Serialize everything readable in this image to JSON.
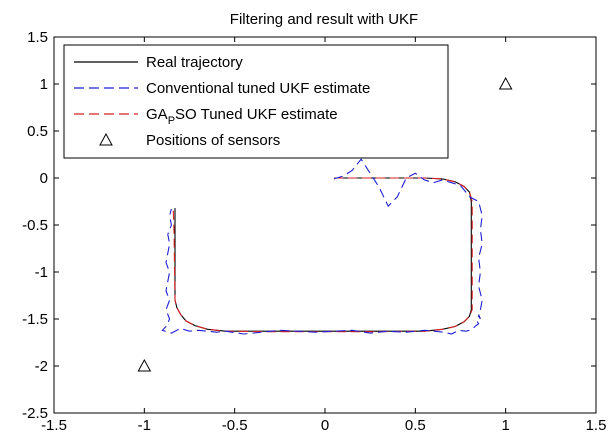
{
  "chart_data": {
    "type": "line",
    "title": "Filtering and  result with UKF",
    "xlabel": "",
    "ylabel": "",
    "xlim": [
      -1.5,
      1.5
    ],
    "ylim": [
      -2.5,
      1.5
    ],
    "xticks": [
      -1.5,
      -1,
      -0.5,
      0,
      0.5,
      1,
      1.5
    ],
    "yticks": [
      -2.5,
      -2,
      -1.5,
      -1,
      -0.5,
      0,
      0.5,
      1,
      1.5
    ],
    "xtick_labels": [
      "-1.5",
      "-1",
      "-0.5",
      "0",
      "0.5",
      "1",
      "1.5"
    ],
    "ytick_labels": [
      "-2.5",
      "-2",
      "-1.5",
      "-1",
      "-0.5",
      "0",
      "0.5",
      "1",
      "1.5"
    ],
    "grid": false,
    "legend": {
      "placement": "top-left",
      "entries": [
        {
          "label": "Real trajectory",
          "style": "solid",
          "color": "#000000",
          "marker": "line"
        },
        {
          "label": "Conventional tuned UKF estimate",
          "style": "dashed",
          "color": "#1f1fd6",
          "marker": "line"
        },
        {
          "label": "GA",
          "sub": "P",
          "rest": "SO Tuned UKF estimate",
          "style": "dashed",
          "color": "#d62020",
          "marker": "line"
        },
        {
          "label": "Positions of sensors",
          "style": "none",
          "color": "#000000",
          "marker": "triangle"
        }
      ]
    },
    "series": [
      {
        "name": "Real trajectory",
        "color": "#000000",
        "style": "solid",
        "x": [
          0.05,
          0.3,
          0.55,
          0.65,
          0.72,
          0.77,
          0.8,
          0.81,
          0.81,
          0.8,
          0.77,
          0.72,
          0.65,
          0.55,
          0.3,
          0.0,
          -0.3,
          -0.55,
          -0.65,
          -0.72,
          -0.77,
          -0.8,
          -0.82,
          -0.83,
          -0.83,
          -0.83
        ],
        "y": [
          0.0,
          0.0,
          0.0,
          -0.01,
          -0.04,
          -0.09,
          -0.15,
          -0.25,
          -1.4,
          -1.47,
          -1.53,
          -1.58,
          -1.61,
          -1.63,
          -1.63,
          -1.63,
          -1.63,
          -1.63,
          -1.61,
          -1.57,
          -1.52,
          -1.45,
          -1.38,
          -1.3,
          -0.6,
          -0.32
        ]
      },
      {
        "name": "GAPSO Tuned UKF estimate",
        "color": "#d62020",
        "style": "dashed",
        "x": [
          0.05,
          0.3,
          0.55,
          0.65,
          0.72,
          0.77,
          0.8,
          0.815,
          0.815,
          0.8,
          0.77,
          0.72,
          0.65,
          0.55,
          0.3,
          0.0,
          -0.3,
          -0.55,
          -0.65,
          -0.72,
          -0.77,
          -0.8,
          -0.82,
          -0.83,
          -0.835,
          -0.84
        ],
        "y": [
          0.0,
          0.0,
          0.0,
          -0.01,
          -0.04,
          -0.09,
          -0.15,
          -0.25,
          -1.4,
          -1.47,
          -1.53,
          -1.58,
          -1.61,
          -1.63,
          -1.635,
          -1.635,
          -1.635,
          -1.63,
          -1.61,
          -1.57,
          -1.52,
          -1.45,
          -1.38,
          -1.3,
          -0.6,
          -0.32
        ]
      },
      {
        "name": "Conventional tuned UKF estimate",
        "color": "#1f1fd6",
        "style": "dashed",
        "x": [
          0.05,
          0.1,
          0.15,
          0.2,
          0.25,
          0.3,
          0.35,
          0.4,
          0.45,
          0.5,
          0.55,
          0.6,
          0.65,
          0.7,
          0.75,
          0.78,
          0.8,
          0.85,
          0.87,
          0.86,
          0.87,
          0.85,
          0.86,
          0.85,
          0.87,
          0.86,
          0.85,
          0.86,
          0.85,
          0.84,
          0.85,
          0.83,
          0.82,
          0.8,
          0.78,
          0.74,
          0.7,
          0.66,
          0.6,
          0.55,
          0.45,
          0.35,
          0.25,
          0.15,
          0.05,
          -0.05,
          -0.15,
          -0.25,
          -0.35,
          -0.45,
          -0.55,
          -0.6,
          -0.65,
          -0.7,
          -0.75,
          -0.8,
          -0.85,
          -0.9,
          -0.88,
          -0.86,
          -0.88,
          -0.86,
          -0.88,
          -0.87,
          -0.86,
          -0.88,
          -0.87,
          -0.86,
          -0.87,
          -0.85,
          -0.86,
          -0.85
        ],
        "y": [
          -0.01,
          0.02,
          0.08,
          0.2,
          0.05,
          -0.1,
          -0.3,
          -0.2,
          0.0,
          0.05,
          -0.02,
          -0.05,
          -0.02,
          -0.05,
          -0.08,
          -0.15,
          -0.2,
          -0.25,
          -0.4,
          -0.55,
          -0.7,
          -0.85,
          -1.0,
          -1.15,
          -1.3,
          -1.4,
          -1.45,
          -1.5,
          -1.47,
          -1.52,
          -1.55,
          -1.58,
          -1.6,
          -1.62,
          -1.63,
          -1.62,
          -1.66,
          -1.64,
          -1.63,
          -1.62,
          -1.64,
          -1.63,
          -1.65,
          -1.62,
          -1.63,
          -1.64,
          -1.63,
          -1.62,
          -1.64,
          -1.66,
          -1.63,
          -1.64,
          -1.63,
          -1.62,
          -1.63,
          -1.6,
          -1.65,
          -1.62,
          -1.58,
          -1.5,
          -1.4,
          -1.3,
          -1.2,
          -1.1,
          -1.0,
          -0.9,
          -0.8,
          -0.7,
          -0.6,
          -0.5,
          -0.4,
          -0.33
        ]
      },
      {
        "name": "Positions of sensors",
        "color": "#000000",
        "style": "marker",
        "x": [
          -1,
          1
        ],
        "y": [
          -2,
          1
        ]
      }
    ]
  }
}
